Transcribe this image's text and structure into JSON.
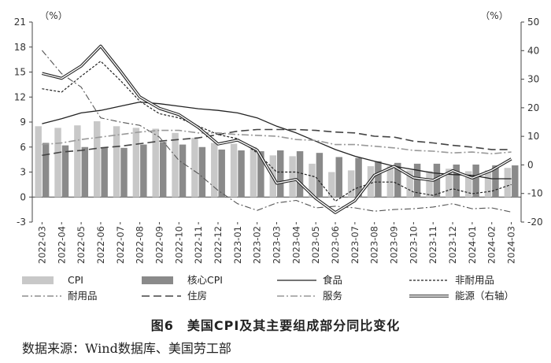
{
  "caption": "图6　美国CPI及其主要组成部分同比变化",
  "source": "数据来源：Wind数据库、美国劳工部",
  "chart_data": {
    "type": "bar+line",
    "left_axis": {
      "unit": "（%）",
      "ylim": [
        -3,
        21
      ],
      "ticks": [
        -3,
        0,
        3,
        6,
        9,
        12,
        15,
        18,
        21
      ]
    },
    "right_axis": {
      "unit": "（%）",
      "ylim": [
        -20,
        50
      ],
      "ticks": [
        -20,
        -10,
        0,
        10,
        20,
        30,
        40,
        50
      ]
    },
    "categories": [
      "2022-03",
      "2022-04",
      "2022-05",
      "2022-06",
      "2022-07",
      "2022-08",
      "2022-09",
      "2022-10",
      "2022-11",
      "2022-12",
      "2023-01",
      "2023-02",
      "2023-03",
      "2023-04",
      "2023-05",
      "2023-06",
      "2023-07",
      "2023-08",
      "2023-09",
      "2023-10",
      "2023-11",
      "2023-12",
      "2024-01",
      "2024-02",
      "2024-03"
    ],
    "bar_series": [
      {
        "name": "CPI",
        "color": "#c8c8c8",
        "values": [
          8.5,
          8.3,
          8.6,
          9.1,
          8.5,
          8.3,
          8.2,
          7.7,
          7.1,
          6.5,
          6.4,
          6.0,
          5.0,
          4.9,
          4.0,
          3.0,
          3.2,
          3.7,
          3.7,
          3.2,
          3.1,
          3.4,
          3.1,
          3.2,
          3.5
        ]
      },
      {
        "name": "核心CPI",
        "color": "#8a8a8a",
        "values": [
          6.5,
          6.2,
          6.0,
          5.9,
          5.9,
          6.3,
          6.6,
          6.3,
          6.0,
          5.7,
          5.6,
          5.5,
          5.6,
          5.5,
          5.3,
          4.8,
          4.7,
          4.3,
          4.1,
          4.0,
          4.0,
          3.9,
          3.9,
          3.8,
          3.8
        ]
      }
    ],
    "line_series": [
      {
        "name": "食品",
        "axis": "left",
        "style": "solid",
        "values": [
          8.8,
          9.4,
          10.1,
          10.4,
          10.9,
          11.4,
          11.2,
          10.9,
          10.6,
          10.4,
          10.1,
          9.5,
          8.5,
          7.7,
          6.7,
          5.7,
          4.9,
          4.3,
          3.7,
          3.3,
          2.9,
          2.7,
          2.6,
          2.2,
          2.2
        ]
      },
      {
        "name": "非耐用品",
        "axis": "left",
        "style": "dashed",
        "values": [
          13.0,
          12.6,
          14.5,
          16.3,
          14.0,
          11.5,
          10.0,
          9.5,
          8.5,
          7.5,
          7.0,
          5.3,
          3.0,
          3.0,
          2.4,
          -0.5,
          1.0,
          1.8,
          1.8,
          0.6,
          0.2,
          1.0,
          0.4,
          0.7,
          1.5
        ]
      },
      {
        "name": "耐用品",
        "axis": "left",
        "style": "dashdot",
        "values": [
          17.6,
          14.8,
          13.2,
          9.5,
          9.0,
          8.6,
          7.2,
          4.4,
          2.8,
          0.8,
          -0.8,
          -1.6,
          -0.7,
          -0.4,
          -1.3,
          -1.1,
          -1.3,
          -1.7,
          -1.5,
          -1.4,
          -1.2,
          -0.8,
          -1.4,
          -1.3,
          -1.8
        ]
      },
      {
        "name": "住房",
        "axis": "left",
        "style": "longdash",
        "values": [
          5.0,
          5.4,
          5.6,
          5.9,
          6.1,
          6.4,
          6.7,
          6.9,
          7.1,
          7.5,
          7.9,
          8.1,
          8.1,
          8.1,
          8.0,
          7.8,
          7.7,
          7.3,
          7.2,
          6.7,
          6.5,
          6.2,
          6.0,
          5.7,
          5.7
        ]
      },
      {
        "name": "服务",
        "axis": "left",
        "style": "dashdot-gray",
        "values": [
          6.3,
          6.5,
          6.9,
          7.2,
          7.5,
          7.8,
          8.0,
          8.0,
          7.7,
          7.7,
          7.5,
          7.4,
          7.3,
          6.9,
          6.8,
          6.3,
          6.3,
          6.1,
          5.9,
          5.6,
          5.5,
          5.3,
          5.4,
          5.2,
          5.4
        ]
      },
      {
        "name": "能源（右轴）",
        "axis": "right",
        "style": "double",
        "values": [
          32.0,
          30.3,
          34.6,
          41.6,
          32.9,
          23.8,
          19.8,
          17.6,
          13.1,
          7.3,
          8.7,
          5.2,
          -6.4,
          -5.1,
          -11.7,
          -16.7,
          -12.5,
          -3.6,
          -0.5,
          -4.5,
          -5.4,
          -2.0,
          -4.6,
          -1.9,
          2.1
        ]
      }
    ],
    "legend": [
      "CPI",
      "核心CPI",
      "食品",
      "非耐用品",
      "耐用品",
      "住房",
      "服务",
      "能源（右轴）"
    ],
    "legend_position": "bottom",
    "grid": false
  }
}
